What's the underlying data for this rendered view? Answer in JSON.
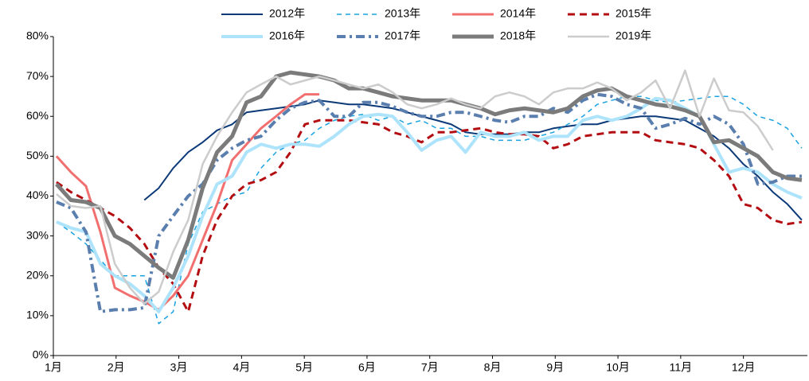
{
  "chart_data": {
    "type": "line",
    "x": [
      1.05,
      1.28,
      1.52,
      1.75,
      1.98,
      2.22,
      2.45,
      2.68,
      2.91,
      3.15,
      3.38,
      3.61,
      3.85,
      4.08,
      4.31,
      4.55,
      4.78,
      5.01,
      5.24,
      5.48,
      5.71,
      5.94,
      6.18,
      6.41,
      6.64,
      6.87,
      7.11,
      7.34,
      7.57,
      7.81,
      8.04,
      8.27,
      8.51,
      8.74,
      8.97,
      9.2,
      9.44,
      9.67,
      9.9,
      10.14,
      10.37,
      10.6,
      10.83,
      11.07,
      11.3,
      11.53,
      11.77,
      12.0,
      12.23,
      12.47,
      12.7,
      12.93
    ],
    "xlim": [
      1,
      13.02
    ],
    "xticks": [
      {
        "value": 1,
        "label": "1月"
      },
      {
        "value": 2,
        "label": "2月"
      },
      {
        "value": 3,
        "label": "3月"
      },
      {
        "value": 4,
        "label": "4月"
      },
      {
        "value": 5,
        "label": "5月"
      },
      {
        "value": 6,
        "label": "6月"
      },
      {
        "value": 7,
        "label": "7月"
      },
      {
        "value": 8,
        "label": "8月"
      },
      {
        "value": 9,
        "label": "9月"
      },
      {
        "value": 10,
        "label": "10月"
      },
      {
        "value": 11,
        "label": "11月"
      },
      {
        "value": 12,
        "label": "12月"
      }
    ],
    "ylim": [
      0,
      80
    ],
    "yticks": [
      {
        "value": 0,
        "label": "0%"
      },
      {
        "value": 10,
        "label": "10%"
      },
      {
        "value": 20,
        "label": "20%"
      },
      {
        "value": 30,
        "label": "30%"
      },
      {
        "value": 40,
        "label": "40%"
      },
      {
        "value": 50,
        "label": "50%"
      },
      {
        "value": 60,
        "label": "60%"
      },
      {
        "value": 70,
        "label": "70%"
      },
      {
        "value": 80,
        "label": "80%"
      }
    ],
    "series": [
      {
        "name": "2012年",
        "color": "#0c3a78",
        "width": 2,
        "dash": "none",
        "values": [
          null,
          null,
          null,
          null,
          null,
          null,
          39,
          42,
          47,
          51,
          53.5,
          56.5,
          58,
          61,
          61.5,
          62,
          62.5,
          63,
          64,
          63.5,
          63,
          63,
          62.5,
          62,
          61,
          60,
          59,
          58,
          56,
          55.5,
          55.5,
          55.5,
          56,
          56,
          57,
          57.5,
          58,
          58,
          59,
          59.5,
          60,
          60,
          59.5,
          59,
          57,
          55,
          52,
          48,
          45,
          41,
          38,
          34
        ]
      },
      {
        "name": "2013年",
        "color": "#1aa3e0",
        "width": 1.5,
        "dash": "6 5",
        "values": [
          33.5,
          31,
          28,
          24,
          20,
          20,
          20,
          8,
          11,
          28,
          36,
          38,
          40,
          41,
          47,
          51,
          53,
          54,
          57,
          59,
          60,
          60.5,
          59,
          60,
          58,
          59,
          57,
          57,
          55,
          55,
          54,
          54,
          54,
          55,
          56,
          58,
          60,
          63,
          64,
          65,
          65,
          64,
          63.5,
          64,
          64.5,
          65,
          65,
          63,
          60,
          59,
          57,
          52
        ]
      },
      {
        "name": "2014年",
        "color": "#f26f6f",
        "width": 3,
        "dash": "none",
        "values": [
          50,
          46,
          42.5,
          31,
          17,
          15,
          13.5,
          11.5,
          15,
          20,
          29,
          38,
          49,
          53,
          57,
          60,
          63,
          65.5,
          65.5,
          null,
          null,
          null,
          null,
          null,
          null,
          null,
          null,
          null,
          null,
          null,
          null,
          null,
          null,
          null,
          null,
          null,
          null,
          null,
          null,
          null,
          null,
          null,
          null,
          null,
          null,
          null,
          null,
          null,
          null,
          null,
          null,
          null
        ]
      },
      {
        "name": "2015年",
        "color": "#b30d12",
        "width": 3,
        "dash": "9 6",
        "values": [
          43.5,
          41,
          39,
          37,
          35,
          32,
          28,
          22,
          18,
          11,
          25,
          34,
          40,
          43,
          44,
          46,
          51,
          58,
          59,
          59,
          59,
          58.5,
          58,
          56,
          55,
          53.5,
          56,
          56,
          56.5,
          57,
          56,
          55.5,
          55.5,
          55,
          52,
          53,
          55,
          55.5,
          56,
          56,
          56,
          54,
          53.5,
          53,
          52,
          49,
          45,
          38,
          37,
          34,
          33,
          33.5
        ]
      },
      {
        "name": "2016年",
        "color": "#aee4fb",
        "width": 4,
        "dash": "none",
        "values": [
          33.5,
          32,
          31,
          23,
          20,
          18,
          15,
          11,
          17,
          25,
          35,
          43,
          45,
          51,
          53,
          52,
          53,
          53,
          52.5,
          55,
          58,
          60,
          60.5,
          60,
          56,
          51.5,
          54,
          55,
          51,
          56,
          55,
          55,
          56,
          54,
          55,
          55,
          59,
          60,
          59,
          60,
          62,
          64.5,
          64,
          62,
          60,
          53,
          46,
          47,
          46,
          43,
          41,
          39.5
        ]
      },
      {
        "name": "2017年",
        "color": "#5a7fae",
        "width": 4,
        "dash": "11 5 3 5",
        "values": [
          38.5,
          37,
          31,
          11,
          11.5,
          11.5,
          12,
          30,
          35,
          40,
          43,
          49,
          52,
          54,
          55,
          59,
          62,
          63.5,
          64,
          60,
          60,
          63.5,
          63.5,
          62.5,
          61,
          60,
          60,
          61,
          61,
          60,
          59,
          58.5,
          60,
          60,
          62,
          61,
          64,
          65.5,
          65,
          63,
          62,
          57,
          58,
          59.5,
          58,
          60,
          58,
          53,
          43,
          43.5,
          45,
          45
        ]
      },
      {
        "name": "2018年",
        "color": "#7b7b7b",
        "width": 5,
        "dash": "none",
        "values": [
          43,
          39,
          38.5,
          37,
          30,
          28,
          25,
          22,
          19.5,
          29,
          42,
          51,
          55,
          63.5,
          65,
          70,
          71,
          70.5,
          70,
          69,
          67,
          67,
          66,
          65,
          64.5,
          64,
          64,
          64,
          63,
          62,
          60.5,
          61.5,
          62,
          61.5,
          61,
          62,
          65,
          66.5,
          67,
          65,
          64,
          63,
          62.5,
          61.5,
          60,
          53.5,
          54,
          52,
          50,
          46,
          44.5,
          44
        ]
      },
      {
        "name": "2019年",
        "color": "#cccccc",
        "width": 2.5,
        "dash": "none",
        "values": [
          40.5,
          37.5,
          37,
          37.5,
          23,
          17,
          13,
          16,
          26,
          34,
          48,
          55,
          61,
          66,
          68,
          70,
          68,
          69,
          70,
          69,
          68,
          67,
          68,
          66,
          63,
          62,
          63,
          64.5,
          63,
          62,
          65,
          66,
          65,
          63,
          66,
          67,
          67,
          68.5,
          67,
          64,
          66,
          69,
          62,
          71.5,
          60,
          69.5,
          61.5,
          61,
          57.5,
          51.5,
          null,
          null
        ]
      }
    ]
  }
}
